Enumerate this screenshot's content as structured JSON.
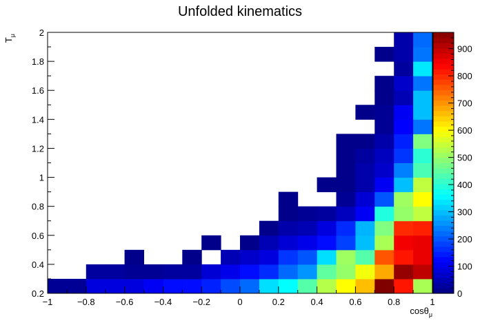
{
  "chart_data": {
    "type": "heatmap",
    "title": "Unfolded kinematics",
    "xlabel": "cosθ",
    "xlabel_sub": "μ",
    "ylabel": "T",
    "ylabel_sub": "μ",
    "xlim": [
      -1,
      1
    ],
    "ylim": [
      0.2,
      2
    ],
    "zlim": [
      0,
      960
    ],
    "x_ticks": [
      "−1",
      "−0.8",
      "−0.6",
      "−0.4",
      "−0.2",
      "0",
      "0.2",
      "0.4",
      "0.6",
      "0.8",
      "1"
    ],
    "y_ticks": [
      "0.2",
      "0.4",
      "0.6",
      "0.8",
      "1",
      "1.2",
      "1.4",
      "1.6",
      "1.8",
      "2"
    ],
    "z_ticks": [
      "0",
      "100",
      "200",
      "300",
      "400",
      "500",
      "600",
      "700",
      "800",
      "900"
    ],
    "colormap": "jet",
    "grid": false,
    "x_edges": [
      -1,
      -0.9,
      -0.8,
      -0.7,
      -0.6,
      -0.5,
      -0.4,
      -0.3,
      -0.2,
      -0.1,
      0,
      0.1,
      0.2,
      0.3,
      0.4,
      0.5,
      0.6,
      0.7,
      0.8,
      0.9,
      1
    ],
    "y_edges": [
      0.2,
      0.3,
      0.4,
      0.5,
      0.6,
      0.7,
      0.8,
      0.9,
      1,
      1.1,
      1.2,
      1.3,
      1.4,
      1.5,
      1.6,
      1.7,
      1.8,
      1.9,
      2
    ],
    "cells": [
      {
        "x": -1.0,
        "y": 0.2,
        "z": 20
      },
      {
        "x": -0.9,
        "y": 0.2,
        "z": 20
      },
      {
        "x": -0.8,
        "y": 0.2,
        "z": 90
      },
      {
        "x": -0.7,
        "y": 0.2,
        "z": 90
      },
      {
        "x": -0.6,
        "y": 0.2,
        "z": 90
      },
      {
        "x": -0.5,
        "y": 0.2,
        "z": 110
      },
      {
        "x": -0.4,
        "y": 0.2,
        "z": 130
      },
      {
        "x": -0.3,
        "y": 0.2,
        "z": 130
      },
      {
        "x": -0.2,
        "y": 0.2,
        "z": 150
      },
      {
        "x": -0.1,
        "y": 0.2,
        "z": 190
      },
      {
        "x": 0.0,
        "y": 0.2,
        "z": 220
      },
      {
        "x": 0.1,
        "y": 0.2,
        "z": 330
      },
      {
        "x": 0.2,
        "y": 0.2,
        "z": 360
      },
      {
        "x": 0.3,
        "y": 0.2,
        "z": 440
      },
      {
        "x": 0.4,
        "y": 0.2,
        "z": 530
      },
      {
        "x": 0.5,
        "y": 0.2,
        "z": 600
      },
      {
        "x": 0.6,
        "y": 0.2,
        "z": 660
      },
      {
        "x": 0.7,
        "y": 0.2,
        "z": 960
      },
      {
        "x": 0.8,
        "y": 0.2,
        "z": 820
      },
      {
        "x": 0.9,
        "y": 0.2,
        "z": 520
      },
      {
        "x": -0.8,
        "y": 0.3,
        "z": 30
      },
      {
        "x": -0.7,
        "y": 0.3,
        "z": 30
      },
      {
        "x": -0.6,
        "y": 0.3,
        "z": 20
      },
      {
        "x": -0.5,
        "y": 0.3,
        "z": 20
      },
      {
        "x": -0.4,
        "y": 0.3,
        "z": 30
      },
      {
        "x": -0.3,
        "y": 0.3,
        "z": 30
      },
      {
        "x": -0.2,
        "y": 0.3,
        "z": 80
      },
      {
        "x": -0.1,
        "y": 0.3,
        "z": 100
      },
      {
        "x": 0.0,
        "y": 0.3,
        "z": 130
      },
      {
        "x": 0.1,
        "y": 0.3,
        "z": 160
      },
      {
        "x": 0.2,
        "y": 0.3,
        "z": 220
      },
      {
        "x": 0.3,
        "y": 0.3,
        "z": 260
      },
      {
        "x": 0.4,
        "y": 0.3,
        "z": 450
      },
      {
        "x": 0.5,
        "y": 0.3,
        "z": 500
      },
      {
        "x": 0.6,
        "y": 0.3,
        "z": 590
      },
      {
        "x": 0.7,
        "y": 0.3,
        "z": 680
      },
      {
        "x": 0.8,
        "y": 0.3,
        "z": 940
      },
      {
        "x": 0.9,
        "y": 0.3,
        "z": 900
      },
      {
        "x": -0.6,
        "y": 0.4,
        "z": 10
      },
      {
        "x": -0.3,
        "y": 0.4,
        "z": 10
      },
      {
        "x": -0.1,
        "y": 0.4,
        "z": 50
      },
      {
        "x": 0.0,
        "y": 0.4,
        "z": 70
      },
      {
        "x": 0.1,
        "y": 0.4,
        "z": 90
      },
      {
        "x": 0.2,
        "y": 0.4,
        "z": 170
      },
      {
        "x": 0.3,
        "y": 0.4,
        "z": 200
      },
      {
        "x": 0.4,
        "y": 0.4,
        "z": 330
      },
      {
        "x": 0.5,
        "y": 0.4,
        "z": 510
      },
      {
        "x": 0.6,
        "y": 0.4,
        "z": 440
      },
      {
        "x": 0.7,
        "y": 0.4,
        "z": 760
      },
      {
        "x": 0.8,
        "y": 0.4,
        "z": 820
      },
      {
        "x": 0.9,
        "y": 0.4,
        "z": 860
      },
      {
        "x": -0.2,
        "y": 0.5,
        "z": 10
      },
      {
        "x": 0.0,
        "y": 0.5,
        "z": 10
      },
      {
        "x": 0.1,
        "y": 0.5,
        "z": 50
      },
      {
        "x": 0.2,
        "y": 0.5,
        "z": 80
      },
      {
        "x": 0.3,
        "y": 0.5,
        "z": 100
      },
      {
        "x": 0.4,
        "y": 0.5,
        "z": 130
      },
      {
        "x": 0.5,
        "y": 0.5,
        "z": 180
      },
      {
        "x": 0.6,
        "y": 0.5,
        "z": 300
      },
      {
        "x": 0.7,
        "y": 0.5,
        "z": 520
      },
      {
        "x": 0.8,
        "y": 0.5,
        "z": 850
      },
      {
        "x": 0.9,
        "y": 0.5,
        "z": 860
      },
      {
        "x": 0.1,
        "y": 0.6,
        "z": 10
      },
      {
        "x": 0.2,
        "y": 0.6,
        "z": 40
      },
      {
        "x": 0.3,
        "y": 0.6,
        "z": 50
      },
      {
        "x": 0.4,
        "y": 0.6,
        "z": 90
      },
      {
        "x": 0.5,
        "y": 0.6,
        "z": 160
      },
      {
        "x": 0.6,
        "y": 0.6,
        "z": 290
      },
      {
        "x": 0.7,
        "y": 0.6,
        "z": 480
      },
      {
        "x": 0.8,
        "y": 0.6,
        "z": 800
      },
      {
        "x": 0.9,
        "y": 0.6,
        "z": 810
      },
      {
        "x": 0.2,
        "y": 0.7,
        "z": 10
      },
      {
        "x": 0.3,
        "y": 0.7,
        "z": 20
      },
      {
        "x": 0.4,
        "y": 0.7,
        "z": 30
      },
      {
        "x": 0.5,
        "y": 0.7,
        "z": 60
      },
      {
        "x": 0.6,
        "y": 0.7,
        "z": 110
      },
      {
        "x": 0.7,
        "y": 0.7,
        "z": 390
      },
      {
        "x": 0.8,
        "y": 0.7,
        "z": 500
      },
      {
        "x": 0.9,
        "y": 0.7,
        "z": 540
      },
      {
        "x": 0.2,
        "y": 0.8,
        "z": 10
      },
      {
        "x": 0.5,
        "y": 0.8,
        "z": 20
      },
      {
        "x": 0.6,
        "y": 0.8,
        "z": 80
      },
      {
        "x": 0.7,
        "y": 0.8,
        "z": 200
      },
      {
        "x": 0.8,
        "y": 0.8,
        "z": 510
      },
      {
        "x": 0.9,
        "y": 0.8,
        "z": 600
      },
      {
        "x": 0.4,
        "y": 0.9,
        "z": 10
      },
      {
        "x": 0.5,
        "y": 0.9,
        "z": 10
      },
      {
        "x": 0.6,
        "y": 0.9,
        "z": 40
      },
      {
        "x": 0.7,
        "y": 0.9,
        "z": 110
      },
      {
        "x": 0.8,
        "y": 0.9,
        "z": 300
      },
      {
        "x": 0.9,
        "y": 0.9,
        "z": 540
      },
      {
        "x": 0.5,
        "y": 1.0,
        "z": 10
      },
      {
        "x": 0.6,
        "y": 1.0,
        "z": 40
      },
      {
        "x": 0.7,
        "y": 1.0,
        "z": 70
      },
      {
        "x": 0.8,
        "y": 1.0,
        "z": 240
      },
      {
        "x": 0.9,
        "y": 1.0,
        "z": 430
      },
      {
        "x": 0.5,
        "y": 1.1,
        "z": 10
      },
      {
        "x": 0.6,
        "y": 1.1,
        "z": 30
      },
      {
        "x": 0.7,
        "y": 1.1,
        "z": 60
      },
      {
        "x": 0.8,
        "y": 1.1,
        "z": 170
      },
      {
        "x": 0.9,
        "y": 1.1,
        "z": 400
      },
      {
        "x": 0.5,
        "y": 1.2,
        "z": 10
      },
      {
        "x": 0.6,
        "y": 1.2,
        "z": 10
      },
      {
        "x": 0.7,
        "y": 1.2,
        "z": 40
      },
      {
        "x": 0.8,
        "y": 1.2,
        "z": 150
      },
      {
        "x": 0.9,
        "y": 1.2,
        "z": 480
      },
      {
        "x": 0.7,
        "y": 1.3,
        "z": 20
      },
      {
        "x": 0.8,
        "y": 1.3,
        "z": 120
      },
      {
        "x": 0.9,
        "y": 1.3,
        "z": 230
      },
      {
        "x": 0.6,
        "y": 1.4,
        "z": 10
      },
      {
        "x": 0.7,
        "y": 1.4,
        "z": 20
      },
      {
        "x": 0.8,
        "y": 1.4,
        "z": 110
      },
      {
        "x": 0.9,
        "y": 1.4,
        "z": 300
      },
      {
        "x": 0.7,
        "y": 1.5,
        "z": 10
      },
      {
        "x": 0.8,
        "y": 1.5,
        "z": 50
      },
      {
        "x": 0.9,
        "y": 1.5,
        "z": 300
      },
      {
        "x": 0.7,
        "y": 1.6,
        "z": 10
      },
      {
        "x": 0.8,
        "y": 1.6,
        "z": 70
      },
      {
        "x": 0.9,
        "y": 1.6,
        "z": 230
      },
      {
        "x": 0.8,
        "y": 1.7,
        "z": 30
      },
      {
        "x": 0.9,
        "y": 1.7,
        "z": 340
      },
      {
        "x": 0.7,
        "y": 1.8,
        "z": 10
      },
      {
        "x": 0.8,
        "y": 1.8,
        "z": 40
      },
      {
        "x": 0.9,
        "y": 1.8,
        "z": 230
      },
      {
        "x": 0.8,
        "y": 1.9,
        "z": 40
      },
      {
        "x": 0.9,
        "y": 1.9,
        "z": 220
      }
    ]
  }
}
